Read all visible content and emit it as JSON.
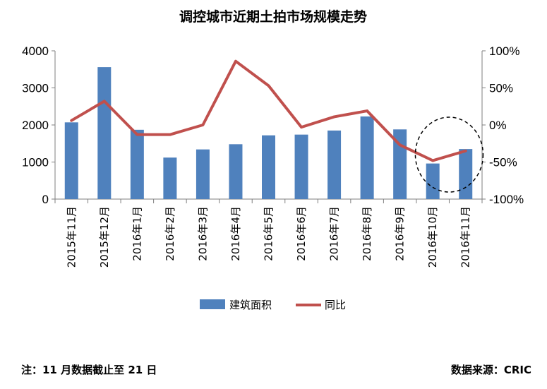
{
  "chart_data": {
    "type": "bar",
    "title": "调控城市近期土拍市场规模走势",
    "categories": [
      "2015年11月",
      "2015年12月",
      "2016年1月",
      "2016年2月",
      "2016年3月",
      "2016年4月",
      "2016年5月",
      "2016年6月",
      "2016年7月",
      "2016年8月",
      "2016年9月",
      "2016年10月",
      "2016年11月"
    ],
    "series": [
      {
        "name": "建筑面积",
        "kind": "bar",
        "axis": "left",
        "color": "#4f81bd",
        "values": [
          2070,
          3560,
          1870,
          1120,
          1340,
          1480,
          1720,
          1740,
          1850,
          2230,
          1880,
          960,
          1350
        ]
      },
      {
        "name": "同比",
        "kind": "line",
        "axis": "right",
        "color": "#c0504d",
        "values": [
          6,
          32,
          -13,
          -13,
          0,
          86,
          53,
          -3,
          11,
          19,
          -27,
          -48,
          -35
        ]
      }
    ],
    "y_left": {
      "min": 0,
      "max": 4000,
      "ticks": [
        0,
        1000,
        2000,
        3000,
        4000
      ],
      "tick_labels": [
        "0",
        "1000",
        "2000",
        "3000",
        "4000"
      ]
    },
    "y_right": {
      "min": -100,
      "max": 100,
      "ticks": [
        -100,
        -50,
        0,
        50,
        100
      ],
      "tick_labels": [
        "-100%",
        "-50%",
        "0%",
        "50%",
        "100%"
      ]
    },
    "grid": false,
    "legend": "bottom",
    "annotation": {
      "type": "dashed-circle",
      "around": [
        "2016年10月",
        "2016年11月"
      ]
    }
  },
  "footer": {
    "note": "注：11 月数据截止至 21 日",
    "source": "数据来源：CRIC"
  }
}
